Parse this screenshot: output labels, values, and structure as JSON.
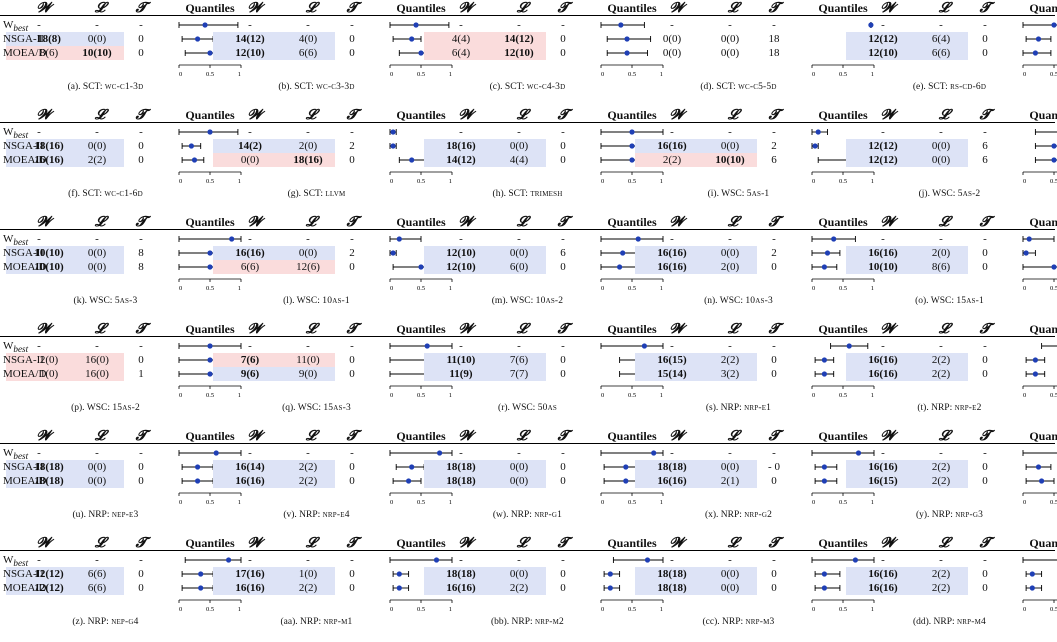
{
  "headers": {
    "w": "𝓦",
    "l": "𝓛",
    "t": "𝓣",
    "q": "Quantiles"
  },
  "row_labels": {
    "best": "W",
    "best_sub": "best",
    "nsga": "NSGA-II",
    "moea": "MOEA/D"
  },
  "axis_ticks": [
    "0",
    "0.5",
    "1"
  ],
  "colors": {
    "blue_highlight": "#dde3f6",
    "pink_highlight": "#fadcdc",
    "marker": "#1f3fb5"
  },
  "panels": [
    {
      "cap_pre": "(a). SCT: ",
      "cap_sc": "wc-c1-3d",
      "best": [
        "-",
        "-",
        "-"
      ],
      "nsga": {
        "w": "18(8)",
        "l": "0(0)",
        "t": "0",
        "hl": "blue",
        "bold": "w"
      },
      "moea": {
        "w": "8(6)",
        "l": "10(10)",
        "t": "0",
        "hl": "pink",
        "bold": "l"
      },
      "q": [
        [
          0.0,
          0.42,
          0.95
        ],
        [
          0.05,
          0.3,
          0.55
        ],
        [
          0.1,
          0.5,
          0.9
        ]
      ]
    },
    {
      "cap_pre": "(b). SCT: ",
      "cap_sc": "wc-c3-3d",
      "best": [
        "-",
        "-",
        "-"
      ],
      "nsga": {
        "w": "14(12)",
        "l": "4(0)",
        "t": "0",
        "hl": "blue",
        "bold": "w"
      },
      "moea": {
        "w": "12(10)",
        "l": "6(6)",
        "t": "0",
        "hl": "blue",
        "bold": "w"
      },
      "q": [
        [
          0.0,
          0.42,
          0.95
        ],
        [
          0.05,
          0.35,
          0.5
        ],
        [
          0.15,
          0.5,
          0.95
        ]
      ]
    },
    {
      "cap_pre": "(c). SCT: ",
      "cap_sc": "wc-c4-3d",
      "best": [
        "-",
        "-",
        "-"
      ],
      "nsga": {
        "w": "4(4)",
        "l": "14(12)",
        "t": "0",
        "hl": "pink",
        "bold": "l"
      },
      "moea": {
        "w": "6(4)",
        "l": "12(10)",
        "t": "0",
        "hl": "pink",
        "bold": "l"
      },
      "q": [
        [
          0.0,
          0.32,
          0.7
        ],
        [
          0.1,
          0.42,
          0.8
        ],
        [
          0.1,
          0.42,
          0.75
        ]
      ]
    },
    {
      "cap_pre": "(d). SCT: ",
      "cap_sc": "wc-c5-5d",
      "best": [
        "-",
        "-",
        "-"
      ],
      "nsga": {
        "w": "0(0)",
        "l": "0(0)",
        "t": "18",
        "hl": "",
        "bold": ""
      },
      "moea": {
        "w": "0(0)",
        "l": "0(0)",
        "t": "18",
        "hl": "",
        "bold": ""
      },
      "q": [
        [
          0.95,
          0.95,
          0.95
        ],
        [
          0.95,
          0.95,
          0.95
        ],
        [
          0.95,
          0.95,
          0.95
        ]
      ]
    },
    {
      "cap_pre": "(e). SCT: ",
      "cap_sc": "rs-cd-6d",
      "best": [
        "-",
        "-",
        "-"
      ],
      "nsga": {
        "w": "12(12)",
        "l": "6(4)",
        "t": "0",
        "hl": "blue",
        "bold": "w"
      },
      "moea": {
        "w": "12(10)",
        "l": "6(6)",
        "t": "0",
        "hl": "blue",
        "bold": "w"
      },
      "q": [
        [
          0.0,
          0.5,
          1.0
        ],
        [
          0.05,
          0.25,
          0.45
        ],
        [
          0.0,
          0.2,
          0.45
        ]
      ]
    },
    {
      "cap_pre": "(f). SCT: ",
      "cap_sc": "wc-c1-6d",
      "best": [
        "-",
        "-",
        "-"
      ],
      "nsga": {
        "w": "18(16)",
        "l": "0(0)",
        "t": "0",
        "hl": "blue",
        "bold": "w"
      },
      "moea": {
        "w": "16(16)",
        "l": "2(2)",
        "t": "0",
        "hl": "blue",
        "bold": "w"
      },
      "q": [
        [
          0.0,
          0.5,
          0.95
        ],
        [
          0.05,
          0.2,
          0.35
        ],
        [
          0.05,
          0.25,
          0.4
        ]
      ]
    },
    {
      "cap_pre": "(g). SCT: ",
      "cap_sc": "llvm",
      "best": [
        "-",
        "-",
        "-"
      ],
      "nsga": {
        "w": "14(2)",
        "l": "2(0)",
        "t": "2",
        "hl": "blue",
        "bold": "w"
      },
      "moea": {
        "w": "0(0)",
        "l": "18(16)",
        "t": "0",
        "hl": "pink",
        "bold": "l"
      },
      "q": [
        [
          0.0,
          0.05,
          0.1
        ],
        [
          0.0,
          0.05,
          0.1
        ],
        [
          0.15,
          0.35,
          1.0
        ]
      ]
    },
    {
      "cap_pre": "(h). SCT: ",
      "cap_sc": "trimesh",
      "best": [
        "-",
        "-",
        "-"
      ],
      "nsga": {
        "w": "18(16)",
        "l": "0(0)",
        "t": "0",
        "hl": "blue",
        "bold": "w"
      },
      "moea": {
        "w": "14(12)",
        "l": "4(4)",
        "t": "0",
        "hl": "blue",
        "bold": "w"
      },
      "q": [
        [
          0.0,
          0.5,
          1.0
        ],
        [
          0.0,
          0.5,
          1.0
        ],
        [
          0.0,
          0.5,
          1.0
        ]
      ]
    },
    {
      "cap_pre": "(i). WSC: ",
      "cap_sc": "5as-1",
      "best": [
        "-",
        "-",
        "-"
      ],
      "nsga": {
        "w": "16(16)",
        "l": "0(0)",
        "t": "2",
        "hl": "blue",
        "bold": "w"
      },
      "moea": {
        "w": "2(2)",
        "l": "10(10)",
        "t": "6",
        "hl": "pink",
        "bold": "l"
      },
      "q": [
        [
          0.0,
          0.1,
          0.25
        ],
        [
          0.0,
          0.05,
          0.1
        ],
        [
          0.1,
          0.7,
          1.0
        ]
      ]
    },
    {
      "cap_pre": "(j). WSC: ",
      "cap_sc": "5as-2",
      "best": [
        "-",
        "-",
        "-"
      ],
      "nsga": {
        "w": "12(12)",
        "l": "0(0)",
        "t": "6",
        "hl": "blue",
        "bold": "w"
      },
      "moea": {
        "w": "12(12)",
        "l": "0(0)",
        "t": "6",
        "hl": "blue",
        "bold": "w"
      },
      "q": [
        [
          0.2,
          0.6,
          1.0
        ],
        [
          0.2,
          0.5,
          0.8
        ],
        [
          0.2,
          0.5,
          0.8
        ]
      ]
    },
    {
      "cap_pre": "(k). WSC: ",
      "cap_sc": "5as-3",
      "best": [
        "-",
        "-",
        "-"
      ],
      "nsga": {
        "w": "10(10)",
        "l": "0(0)",
        "t": "8",
        "hl": "blue",
        "bold": "w"
      },
      "moea": {
        "w": "10(10)",
        "l": "0(0)",
        "t": "8",
        "hl": "blue",
        "bold": "w"
      },
      "q": [
        [
          0.0,
          0.85,
          1.0
        ],
        [
          0.0,
          0.5,
          1.0
        ],
        [
          0.0,
          0.5,
          1.0
        ]
      ]
    },
    {
      "cap_pre": "(l). WSC: ",
      "cap_sc": "10as-1",
      "best": [
        "-",
        "-",
        "-"
      ],
      "nsga": {
        "w": "16(16)",
        "l": "0(0)",
        "t": "2",
        "hl": "blue",
        "bold": "w"
      },
      "moea": {
        "w": "6(6)",
        "l": "12(6)",
        "t": "0",
        "hl": "pink",
        "bold": ""
      },
      "q": [
        [
          0.0,
          0.15,
          0.5
        ],
        [
          0.0,
          0.05,
          0.1
        ],
        [
          0.05,
          0.5,
          1.0
        ]
      ]
    },
    {
      "cap_pre": "(m). WSC: ",
      "cap_sc": "10as-2",
      "best": [
        "-",
        "-",
        "-"
      ],
      "nsga": {
        "w": "12(10)",
        "l": "0(0)",
        "t": "6",
        "hl": "blue",
        "bold": "w"
      },
      "moea": {
        "w": "12(10)",
        "l": "6(0)",
        "t": "0",
        "hl": "blue",
        "bold": "w"
      },
      "q": [
        [
          0.0,
          0.6,
          1.0
        ],
        [
          0.0,
          0.35,
          0.7
        ],
        [
          0.0,
          0.3,
          0.7
        ]
      ]
    },
    {
      "cap_pre": "(n). WSC: ",
      "cap_sc": "10as-3",
      "best": [
        "-",
        "-",
        "-"
      ],
      "nsga": {
        "w": "16(16)",
        "l": "0(0)",
        "t": "2",
        "hl": "blue",
        "bold": "w"
      },
      "moea": {
        "w": "16(16)",
        "l": "2(0)",
        "t": "0",
        "hl": "blue",
        "bold": "w"
      },
      "q": [
        [
          0.0,
          0.35,
          0.7
        ],
        [
          0.0,
          0.25,
          0.45
        ],
        [
          0.0,
          0.2,
          0.4
        ]
      ]
    },
    {
      "cap_pre": "(o). WSC: ",
      "cap_sc": "15as-1",
      "best": [
        "-",
        "-",
        "-"
      ],
      "nsga": {
        "w": "16(16)",
        "l": "2(0)",
        "t": "0",
        "hl": "blue",
        "bold": "w"
      },
      "moea": {
        "w": "10(10)",
        "l": "8(6)",
        "t": "0",
        "hl": "blue",
        "bold": "w"
      },
      "q": [
        [
          0.0,
          0.1,
          0.5
        ],
        [
          0.0,
          0.05,
          0.2
        ],
        [
          0.0,
          0.5,
          1.0
        ]
      ]
    },
    {
      "cap_pre": "(p). WSC: ",
      "cap_sc": "15as-2",
      "best": [
        "-",
        "-",
        "-"
      ],
      "nsga": {
        "w": "2(0)",
        "l": "16(0)",
        "t": "0",
        "hl": "pink",
        "bold": ""
      },
      "moea": {
        "w": "1(0)",
        "l": "16(0)",
        "t": "1",
        "hl": "pink",
        "bold": ""
      },
      "q": [
        [
          0.0,
          0.5,
          1.0
        ],
        [
          0.0,
          0.5,
          1.0
        ],
        [
          0.0,
          0.5,
          1.0
        ]
      ]
    },
    {
      "cap_pre": "(q). WSC: ",
      "cap_sc": "15as-3",
      "best": [
        "-",
        "-",
        "-"
      ],
      "nsga": {
        "w": "7(6)",
        "l": "11(0)",
        "t": "0",
        "hl": "pink",
        "bold": "w"
      },
      "moea": {
        "w": "9(6)",
        "l": "9(0)",
        "t": "0",
        "hl": "blue",
        "bold": "w"
      },
      "q": [
        [
          0.0,
          0.6,
          1.0
        ],
        [
          0.0,
          0.6,
          0.9
        ],
        [
          0.0,
          0.6,
          0.9
        ]
      ]
    },
    {
      "cap_pre": "(r). WSC: ",
      "cap_sc": "50as",
      "best": [
        "-",
        "-",
        "-"
      ],
      "nsga": {
        "w": "11(10)",
        "l": "7(6)",
        "t": "0",
        "hl": "blue",
        "bold": "w"
      },
      "moea": {
        "w": "11(9)",
        "l": "7(7)",
        "t": "0",
        "hl": "blue",
        "bold": "w"
      },
      "q": [
        [
          0.0,
          0.7,
          1.0
        ],
        [
          0.3,
          0.6,
          0.9
        ],
        [
          0.3,
          0.6,
          0.9
        ]
      ]
    },
    {
      "cap_pre": "(s). NRP: ",
      "cap_sc": "nrp-e1",
      "best": [
        "-",
        "-",
        "-"
      ],
      "nsga": {
        "w": "16(15)",
        "l": "2(2)",
        "t": "0",
        "hl": "blue",
        "bold": "w"
      },
      "moea": {
        "w": "15(14)",
        "l": "3(2)",
        "t": "0",
        "hl": "blue",
        "bold": "w"
      },
      "q": [
        [
          0.3,
          0.6,
          0.9
        ],
        [
          0.05,
          0.2,
          0.35
        ],
        [
          0.05,
          0.2,
          0.35
        ]
      ]
    },
    {
      "cap_pre": "(t). NRP: ",
      "cap_sc": "nrp-e2",
      "best": [
        "-",
        "-",
        "-"
      ],
      "nsga": {
        "w": "16(16)",
        "l": "2(2)",
        "t": "0",
        "hl": "blue",
        "bold": "w"
      },
      "moea": {
        "w": "16(16)",
        "l": "2(2)",
        "t": "0",
        "hl": "blue",
        "bold": "w"
      },
      "q": [
        [
          0.3,
          0.9,
          1.0
        ],
        [
          0.05,
          0.2,
          0.35
        ],
        [
          0.05,
          0.2,
          0.35
        ]
      ]
    },
    {
      "cap_pre": "(u). NRP: ",
      "cap_sc": "nep-e3",
      "best": [
        "-",
        "-",
        "-"
      ],
      "nsga": {
        "w": "18(18)",
        "l": "0(0)",
        "t": "0",
        "hl": "blue",
        "bold": "w"
      },
      "moea": {
        "w": "18(18)",
        "l": "0(0)",
        "t": "0",
        "hl": "blue",
        "bold": "w"
      },
      "q": [
        [
          0.0,
          0.6,
          1.0
        ],
        [
          0.05,
          0.3,
          0.55
        ],
        [
          0.05,
          0.3,
          0.55
        ]
      ]
    },
    {
      "cap_pre": "(v). NRP: ",
      "cap_sc": "nrp-e4",
      "best": [
        "-",
        "-",
        "-"
      ],
      "nsga": {
        "w": "16(14)",
        "l": "2(2)",
        "t": "0",
        "hl": "blue",
        "bold": "w"
      },
      "moea": {
        "w": "16(16)",
        "l": "2(2)",
        "t": "0",
        "hl": "blue",
        "bold": "w"
      },
      "q": [
        [
          0.0,
          0.8,
          1.0
        ],
        [
          0.1,
          0.35,
          0.55
        ],
        [
          0.05,
          0.3,
          0.5
        ]
      ]
    },
    {
      "cap_pre": "(w). NRP: ",
      "cap_sc": "nrp-g1",
      "best": [
        "-",
        "-",
        "-"
      ],
      "nsga": {
        "w": "18(18)",
        "l": "0(0)",
        "t": "0",
        "hl": "blue",
        "bold": "w"
      },
      "moea": {
        "w": "18(18)",
        "l": "0(0)",
        "t": "0",
        "hl": "blue",
        "bold": "w"
      },
      "q": [
        [
          0.0,
          0.85,
          1.0
        ],
        [
          0.05,
          0.4,
          0.7
        ],
        [
          0.05,
          0.4,
          0.7
        ]
      ]
    },
    {
      "cap_pre": "(x). NRP: ",
      "cap_sc": "nrp-g2",
      "best": [
        "-",
        "-",
        "-"
      ],
      "nsga": {
        "w": "18(18)",
        "l": "0(0)",
        "t": "- 0",
        "hl": "blue",
        "bold": "w"
      },
      "moea": {
        "w": "16(16)",
        "l": "2(1)",
        "t": "0",
        "hl": "blue",
        "bold": "w"
      },
      "q": [
        [
          0.0,
          0.75,
          1.0
        ],
        [
          0.05,
          0.2,
          0.4
        ],
        [
          0.05,
          0.2,
          0.4
        ]
      ]
    },
    {
      "cap_pre": "(y). NRP: ",
      "cap_sc": "nrp-g3",
      "best": [
        "-",
        "-",
        "-"
      ],
      "nsga": {
        "w": "16(16)",
        "l": "2(2)",
        "t": "0",
        "hl": "blue",
        "bold": "w"
      },
      "moea": {
        "w": "16(15)",
        "l": "2(2)",
        "t": "0",
        "hl": "blue",
        "bold": "w"
      },
      "q": [
        [
          0.0,
          0.85,
          1.0
        ],
        [
          0.05,
          0.25,
          0.45
        ],
        [
          0.05,
          0.3,
          0.5
        ]
      ]
    },
    {
      "cap_pre": "(z). NRP: ",
      "cap_sc": "nep-g4",
      "best": [
        "-",
        "-",
        "-"
      ],
      "nsga": {
        "w": "12(12)",
        "l": "6(6)",
        "t": "0",
        "hl": "blue",
        "bold": "w"
      },
      "moea": {
        "w": "12(12)",
        "l": "6(6)",
        "t": "0",
        "hl": "blue",
        "bold": "w"
      },
      "q": [
        [
          0.1,
          0.8,
          1.0
        ],
        [
          0.05,
          0.35,
          0.55
        ],
        [
          0.05,
          0.35,
          0.55
        ]
      ]
    },
    {
      "cap_pre": "(aa). NRP: ",
      "cap_sc": "nrp-m1",
      "best": [
        "-",
        "-",
        "-"
      ],
      "nsga": {
        "w": "17(16)",
        "l": "1(0)",
        "t": "0",
        "hl": "blue",
        "bold": "w"
      },
      "moea": {
        "w": "16(16)",
        "l": "2(2)",
        "t": "0",
        "hl": "blue",
        "bold": "w"
      },
      "q": [
        [
          0.0,
          0.75,
          1.0
        ],
        [
          0.05,
          0.15,
          0.3
        ],
        [
          0.05,
          0.15,
          0.3
        ]
      ]
    },
    {
      "cap_pre": "(bb). NRP: ",
      "cap_sc": "nrp-m2",
      "best": [
        "-",
        "-",
        "-"
      ],
      "nsga": {
        "w": "18(18)",
        "l": "0(0)",
        "t": "0",
        "hl": "blue",
        "bold": "w"
      },
      "moea": {
        "w": "16(16)",
        "l": "2(2)",
        "t": "0",
        "hl": "blue",
        "bold": "w"
      },
      "q": [
        [
          0.2,
          0.75,
          1.0
        ],
        [
          0.05,
          0.15,
          0.3
        ],
        [
          0.05,
          0.15,
          0.3
        ]
      ]
    },
    {
      "cap_pre": "(cc). NRP: ",
      "cap_sc": "nrp-m3",
      "best": [
        "-",
        "-",
        "-"
      ],
      "nsga": {
        "w": "18(18)",
        "l": "0(0)",
        "t": "0",
        "hl": "blue",
        "bold": "w"
      },
      "moea": {
        "w": "18(18)",
        "l": "0(0)",
        "t": "0",
        "hl": "blue",
        "bold": "w"
      },
      "q": [
        [
          0.0,
          0.7,
          1.0
        ],
        [
          0.05,
          0.2,
          0.45
        ],
        [
          0.05,
          0.2,
          0.45
        ]
      ]
    },
    {
      "cap_pre": "(dd). NRP: ",
      "cap_sc": "nrp-m4",
      "best": [
        "-",
        "-",
        "-"
      ],
      "nsga": {
        "w": "16(16)",
        "l": "2(2)",
        "t": "0",
        "hl": "blue",
        "bold": "w"
      },
      "moea": {
        "w": "16(16)",
        "l": "2(2)",
        "t": "0",
        "hl": "blue",
        "bold": "w"
      },
      "q": [
        [
          0.0,
          0.85,
          1.0
        ],
        [
          0.05,
          0.15,
          0.3
        ],
        [
          0.05,
          0.15,
          0.3
        ]
      ]
    }
  ]
}
